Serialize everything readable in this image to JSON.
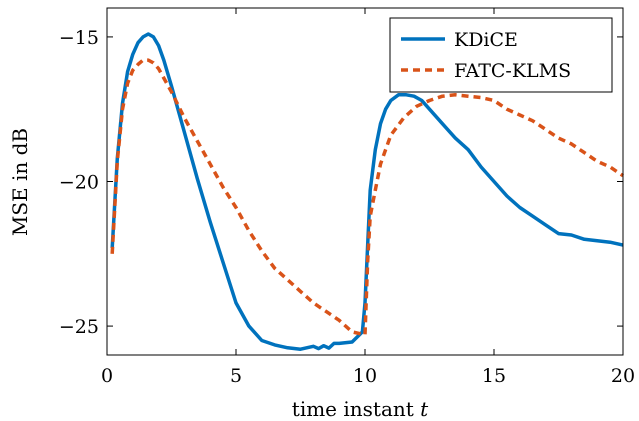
{
  "chart_data": {
    "type": "line",
    "xlabel": "time instant",
    "xlabel_var": "t",
    "ylabel": "MSE in dB",
    "xlim": [
      0,
      20
    ],
    "ylim": [
      -26,
      -14
    ],
    "xticks": [
      0,
      5,
      10,
      15,
      20
    ],
    "yticks": [
      -25,
      -20,
      -15
    ],
    "ytick_labels": [
      "−25",
      "−20",
      "−15"
    ],
    "grid": false,
    "legend_position": "top-right",
    "series": [
      {
        "name": "KDiCE",
        "color": "#0072bd",
        "style": "solid",
        "x": [
          0.2,
          0.4,
          0.6,
          0.8,
          1.0,
          1.2,
          1.4,
          1.6,
          1.8,
          2.0,
          2.2,
          2.5,
          3.0,
          3.5,
          4.0,
          4.5,
          5.0,
          5.5,
          6.0,
          6.5,
          7.0,
          7.5,
          8.0,
          8.2,
          8.4,
          8.6,
          8.8,
          9.0,
          9.5,
          9.9,
          10.0,
          10.2,
          10.4,
          10.6,
          10.8,
          11.0,
          11.3,
          11.6,
          11.9,
          12.2,
          12.5,
          13.0,
          13.5,
          14.0,
          14.5,
          15.0,
          15.5,
          16.0,
          16.5,
          17.0,
          17.5,
          18.0,
          18.5,
          19.0,
          19.5,
          20.0
        ],
        "y": [
          -22.3,
          -19.2,
          -17.3,
          -16.2,
          -15.6,
          -15.2,
          -15.0,
          -14.9,
          -15.0,
          -15.3,
          -15.8,
          -16.7,
          -18.3,
          -19.9,
          -21.4,
          -22.8,
          -24.2,
          -25.0,
          -25.5,
          -25.65,
          -25.75,
          -25.8,
          -25.7,
          -25.78,
          -25.68,
          -25.76,
          -25.6,
          -25.6,
          -25.55,
          -25.2,
          -24.2,
          -20.3,
          -18.9,
          -18.0,
          -17.5,
          -17.2,
          -17.0,
          -17.0,
          -17.05,
          -17.2,
          -17.5,
          -18.0,
          -18.5,
          -18.9,
          -19.5,
          -20.0,
          -20.5,
          -20.9,
          -21.2,
          -21.5,
          -21.8,
          -21.85,
          -22.0,
          -22.05,
          -22.1,
          -22.2
        ]
      },
      {
        "name": "FATC-KLMS",
        "color": "#d95319",
        "style": "dashed",
        "x": [
          0.2,
          0.4,
          0.6,
          0.8,
          1.0,
          1.2,
          1.4,
          1.6,
          1.8,
          2.0,
          2.5,
          3.0,
          3.5,
          4.0,
          4.5,
          5.0,
          5.5,
          6.0,
          6.5,
          7.0,
          7.5,
          8.0,
          8.5,
          9.0,
          9.5,
          10.0,
          10.1,
          10.2,
          10.4,
          10.6,
          10.8,
          11.0,
          11.5,
          12.0,
          12.5,
          13.0,
          13.5,
          14.0,
          14.5,
          15.0,
          15.5,
          16.0,
          16.5,
          17.0,
          17.5,
          18.0,
          18.5,
          19.0,
          19.5,
          20.0
        ],
        "y": [
          -22.5,
          -19.3,
          -17.5,
          -16.6,
          -16.15,
          -15.95,
          -15.8,
          -15.8,
          -15.9,
          -16.1,
          -16.9,
          -17.8,
          -18.6,
          -19.4,
          -20.2,
          -20.9,
          -21.7,
          -22.4,
          -23.0,
          -23.4,
          -23.8,
          -24.2,
          -24.5,
          -24.8,
          -25.2,
          -25.3,
          -22.8,
          -21.2,
          -20.3,
          -19.4,
          -18.9,
          -18.4,
          -17.8,
          -17.4,
          -17.2,
          -17.05,
          -17.0,
          -17.05,
          -17.1,
          -17.2,
          -17.5,
          -17.7,
          -17.9,
          -18.2,
          -18.5,
          -18.7,
          -19.0,
          -19.3,
          -19.5,
          -19.8
        ]
      }
    ]
  }
}
